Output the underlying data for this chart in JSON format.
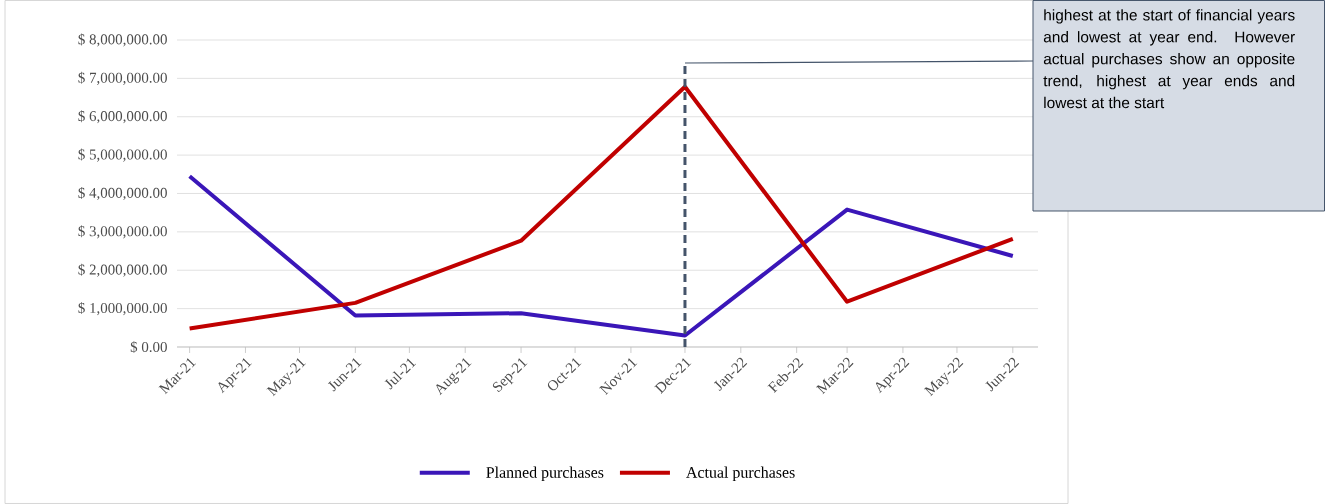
{
  "chart_data": {
    "type": "line",
    "x": [
      "2021-03",
      "2021-06",
      "2021-09",
      "2021-12",
      "2022-03",
      "2022-06"
    ],
    "series": [
      {
        "name": "Planned purchases",
        "color": "#3a16b8",
        "values": [
          4450000,
          820000,
          880000,
          300000,
          3580000,
          2370000
        ]
      },
      {
        "name": "Actual purchases",
        "color": "#c00000",
        "values": [
          480000,
          1150000,
          2770000,
          6780000,
          1180000,
          2820000
        ]
      }
    ],
    "xlim": [
      "2021-02-22",
      "2022-06-15"
    ],
    "xticks": [
      {
        "value": "2021-03",
        "label": "Mar-21"
      },
      {
        "value": "2021-04",
        "label": "Apr-21"
      },
      {
        "value": "2021-05",
        "label": "May-21"
      },
      {
        "value": "2021-06",
        "label": "Jun-21"
      },
      {
        "value": "2021-07",
        "label": "Jul-21"
      },
      {
        "value": "2021-08",
        "label": "Aug-21"
      },
      {
        "value": "2021-09",
        "label": "Sep-21"
      },
      {
        "value": "2021-10",
        "label": "Oct-21"
      },
      {
        "value": "2021-11",
        "label": "Nov-21"
      },
      {
        "value": "2021-12",
        "label": "Dec-21"
      },
      {
        "value": "2022-01",
        "label": "Jan-22"
      },
      {
        "value": "2022-02",
        "label": "Feb-22"
      },
      {
        "value": "2022-03",
        "label": "Mar-22"
      },
      {
        "value": "2022-04",
        "label": "Apr-22"
      },
      {
        "value": "2022-05",
        "label": "May-22"
      },
      {
        "value": "2022-06",
        "label": "Jun-22"
      }
    ],
    "ylim": [
      0,
      8000000
    ],
    "yticks": [
      {
        "value": 0,
        "label": "$ 0.00"
      },
      {
        "value": 1000000,
        "label": "$ 1,000,000.00"
      },
      {
        "value": 2000000,
        "label": "$ 2,000,000.00"
      },
      {
        "value": 3000000,
        "label": "$ 3,000,000.00"
      },
      {
        "value": 4000000,
        "label": "$ 4,000,000.00"
      },
      {
        "value": 5000000,
        "label": "$ 5,000,000.00"
      },
      {
        "value": 6000000,
        "label": "$ 6,000,000.00"
      },
      {
        "value": 7000000,
        "label": "$ 7,000,000.00"
      },
      {
        "value": 8000000,
        "label": "$ 8,000,000.00"
      }
    ],
    "ref_lines": [
      {
        "axis": "x",
        "value": "2021-12",
        "color": "#44546a",
        "line_style": "dashed"
      }
    ],
    "annotations": [
      "highest at the start of financial years and lowest at year end. However actual purchases show an opposite trend, highest at year ends and lowest at the start"
    ],
    "grid": "y",
    "legend": "bottom",
    "marker": "none",
    "line_style": "solid"
  }
}
